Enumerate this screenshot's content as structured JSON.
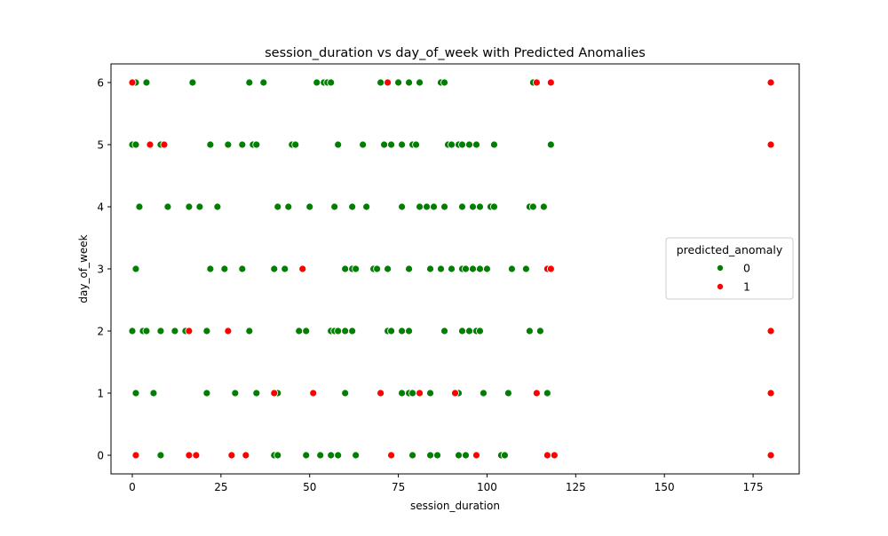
{
  "chart_data": {
    "type": "scatter",
    "title": "session_duration vs day_of_week with Predicted Anomalies",
    "xlabel": "session_duration",
    "ylabel": "day_of_week",
    "xlim": [
      -6,
      188
    ],
    "ylim": [
      -0.3,
      6.3
    ],
    "xticks": [
      0,
      25,
      50,
      75,
      100,
      125,
      150,
      175
    ],
    "yticks": [
      0,
      1,
      2,
      3,
      4,
      5,
      6
    ],
    "grid": false,
    "legend": {
      "title": "predicted_anomaly",
      "placement": "center-right",
      "entries": [
        {
          "label": "0",
          "color": "#008000"
        },
        {
          "label": "1",
          "color": "#ff0000"
        }
      ]
    },
    "series": [
      {
        "name": "0",
        "color": "#008000",
        "points": [
          [
            1,
            6
          ],
          [
            4,
            6
          ],
          [
            17,
            6
          ],
          [
            33,
            6
          ],
          [
            37,
            6
          ],
          [
            52,
            6
          ],
          [
            54,
            6
          ],
          [
            55,
            6
          ],
          [
            56,
            6
          ],
          [
            70,
            6
          ],
          [
            75,
            6
          ],
          [
            78,
            6
          ],
          [
            81,
            6
          ],
          [
            87,
            6
          ],
          [
            88,
            6
          ],
          [
            113,
            6
          ],
          [
            0,
            5
          ],
          [
            1,
            5
          ],
          [
            8,
            5
          ],
          [
            22,
            5
          ],
          [
            27,
            5
          ],
          [
            31,
            5
          ],
          [
            34,
            5
          ],
          [
            35,
            5
          ],
          [
            45,
            5
          ],
          [
            46,
            5
          ],
          [
            58,
            5
          ],
          [
            65,
            5
          ],
          [
            71,
            5
          ],
          [
            73,
            5
          ],
          [
            76,
            5
          ],
          [
            79,
            5
          ],
          [
            80,
            5
          ],
          [
            89,
            5
          ],
          [
            90,
            5
          ],
          [
            92,
            5
          ],
          [
            93,
            5
          ],
          [
            95,
            5
          ],
          [
            97,
            5
          ],
          [
            102,
            5
          ],
          [
            118,
            5
          ],
          [
            2,
            4
          ],
          [
            10,
            4
          ],
          [
            16,
            4
          ],
          [
            19,
            4
          ],
          [
            24,
            4
          ],
          [
            41,
            4
          ],
          [
            44,
            4
          ],
          [
            50,
            4
          ],
          [
            57,
            4
          ],
          [
            62,
            4
          ],
          [
            66,
            4
          ],
          [
            76,
            4
          ],
          [
            81,
            4
          ],
          [
            83,
            4
          ],
          [
            85,
            4
          ],
          [
            88,
            4
          ],
          [
            93,
            4
          ],
          [
            96,
            4
          ],
          [
            98,
            4
          ],
          [
            101,
            4
          ],
          [
            102,
            4
          ],
          [
            112,
            4
          ],
          [
            113,
            4
          ],
          [
            116,
            4
          ],
          [
            1,
            3
          ],
          [
            22,
            3
          ],
          [
            26,
            3
          ],
          [
            31,
            3
          ],
          [
            40,
            3
          ],
          [
            43,
            3
          ],
          [
            60,
            3
          ],
          [
            62,
            3
          ],
          [
            63,
            3
          ],
          [
            68,
            3
          ],
          [
            69,
            3
          ],
          [
            72,
            3
          ],
          [
            78,
            3
          ],
          [
            84,
            3
          ],
          [
            87,
            3
          ],
          [
            90,
            3
          ],
          [
            93,
            3
          ],
          [
            94,
            3
          ],
          [
            96,
            3
          ],
          [
            98,
            3
          ],
          [
            100,
            3
          ],
          [
            107,
            3
          ],
          [
            111,
            3
          ],
          [
            0,
            2
          ],
          [
            3,
            2
          ],
          [
            4,
            2
          ],
          [
            8,
            2
          ],
          [
            12,
            2
          ],
          [
            15,
            2
          ],
          [
            21,
            2
          ],
          [
            33,
            2
          ],
          [
            47,
            2
          ],
          [
            49,
            2
          ],
          [
            56,
            2
          ],
          [
            57,
            2
          ],
          [
            58,
            2
          ],
          [
            60,
            2
          ],
          [
            62,
            2
          ],
          [
            72,
            2
          ],
          [
            73,
            2
          ],
          [
            76,
            2
          ],
          [
            78,
            2
          ],
          [
            88,
            2
          ],
          [
            93,
            2
          ],
          [
            95,
            2
          ],
          [
            97,
            2
          ],
          [
            98,
            2
          ],
          [
            112,
            2
          ],
          [
            115,
            2
          ],
          [
            1,
            1
          ],
          [
            6,
            1
          ],
          [
            21,
            1
          ],
          [
            29,
            1
          ],
          [
            35,
            1
          ],
          [
            41,
            1
          ],
          [
            60,
            1
          ],
          [
            76,
            1
          ],
          [
            78,
            1
          ],
          [
            79,
            1
          ],
          [
            84,
            1
          ],
          [
            92,
            1
          ],
          [
            99,
            1
          ],
          [
            106,
            1
          ],
          [
            117,
            1
          ],
          [
            8,
            0
          ],
          [
            40,
            0
          ],
          [
            41,
            0
          ],
          [
            49,
            0
          ],
          [
            53,
            0
          ],
          [
            56,
            0
          ],
          [
            58,
            0
          ],
          [
            63,
            0
          ],
          [
            79,
            0
          ],
          [
            84,
            0
          ],
          [
            86,
            0
          ],
          [
            92,
            0
          ],
          [
            94,
            0
          ],
          [
            104,
            0
          ],
          [
            105,
            0
          ]
        ]
      },
      {
        "name": "1",
        "color": "#ff0000",
        "points": [
          [
            0,
            6
          ],
          [
            72,
            6
          ],
          [
            114,
            6
          ],
          [
            118,
            6
          ],
          [
            180,
            6
          ],
          [
            5,
            5
          ],
          [
            9,
            5
          ],
          [
            180,
            5
          ],
          [
            48,
            3
          ],
          [
            117,
            3
          ],
          [
            118,
            3
          ],
          [
            16,
            2
          ],
          [
            27,
            2
          ],
          [
            180,
            2
          ],
          [
            40,
            1
          ],
          [
            51,
            1
          ],
          [
            70,
            1
          ],
          [
            81,
            1
          ],
          [
            91,
            1
          ],
          [
            114,
            1
          ],
          [
            180,
            1
          ],
          [
            1,
            0
          ],
          [
            16,
            0
          ],
          [
            18,
            0
          ],
          [
            28,
            0
          ],
          [
            32,
            0
          ],
          [
            73,
            0
          ],
          [
            97,
            0
          ],
          [
            117,
            0
          ],
          [
            119,
            0
          ],
          [
            180,
            0
          ]
        ]
      }
    ]
  }
}
